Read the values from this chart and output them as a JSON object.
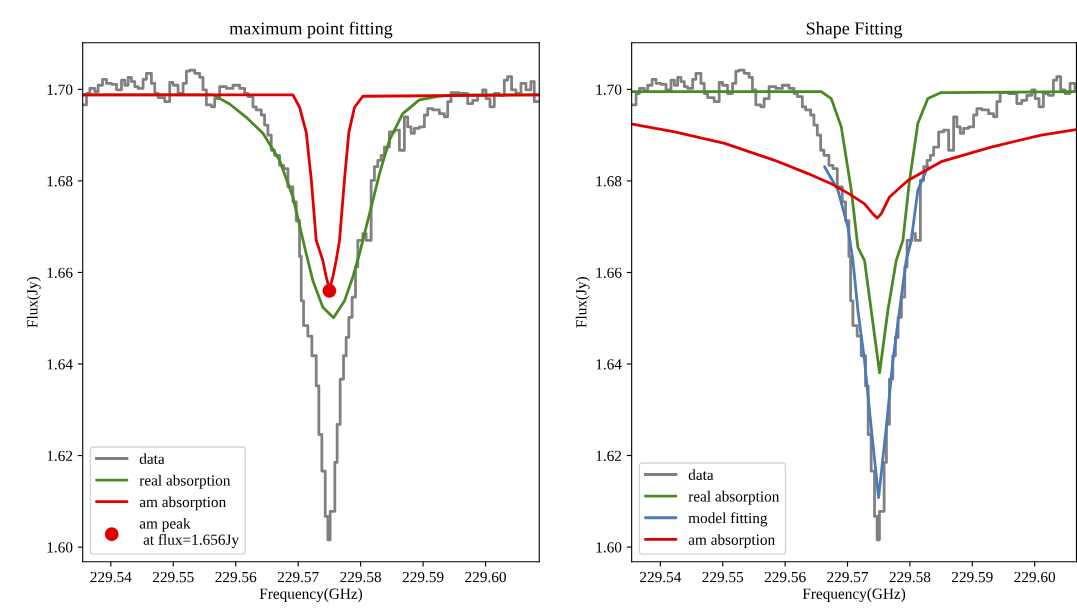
{
  "chart_data": [
    {
      "type": "line",
      "title": "maximum point fitting",
      "xlabel": "Frequency(GHz)",
      "ylabel": "Flux(Jy)",
      "xlim": [
        229.5355,
        229.6086
      ],
      "ylim": [
        1.5968,
        1.7102
      ],
      "xticks": [
        {
          "value": 229.54,
          "label": "229.54"
        },
        {
          "value": 229.55,
          "label": "229.55"
        },
        {
          "value": 229.56,
          "label": "229.56"
        },
        {
          "value": 229.57,
          "label": "229.57"
        },
        {
          "value": 229.58,
          "label": "229.58"
        },
        {
          "value": 229.59,
          "label": "229.59"
        },
        {
          "value": 229.6,
          "label": "229.60"
        }
      ],
      "yticks": [
        {
          "value": 1.6,
          "label": "1.60"
        },
        {
          "value": 1.62,
          "label": "1.62"
        },
        {
          "value": 1.64,
          "label": "1.64"
        },
        {
          "value": 1.66,
          "label": "1.66"
        },
        {
          "value": 1.68,
          "label": "1.68"
        },
        {
          "value": 1.7,
          "label": "1.70"
        }
      ],
      "grid": false,
      "legend": "bottom left",
      "series": [
        {
          "name": "data",
          "type": "step",
          "color": "#808080",
          "x": [
            229.53558,
            229.53611,
            229.53664,
            229.53744,
            229.53797,
            229.53867,
            229.53931,
            229.54011,
            229.54091,
            229.54171,
            229.54224,
            229.54277,
            229.5433,
            229.54384,
            229.54437,
            229.54517,
            229.5457,
            229.5465,
            229.54704,
            229.54757,
            229.54863,
            229.54943,
            229.54997,
            229.55077,
            229.55157,
            229.5521,
            229.55263,
            229.55343,
            229.55423,
            229.55476,
            229.5553,
            229.5561,
            229.55663,
            229.55743,
            229.5585,
            229.55956,
            229.56063,
            229.56143,
            229.56196,
            229.56276,
            229.56329,
            229.56409,
            229.56462,
            229.56516,
            229.56569,
            229.56622,
            229.56702,
            229.56766,
            229.56836,
            229.56916,
            229.56969,
            229.57022,
            229.57049,
            229.57086,
            229.57155,
            229.57219,
            229.57289,
            229.57331,
            229.57379,
            229.57433,
            229.57475,
            229.57512,
            229.57587,
            229.57624,
            229.57672,
            229.57726,
            229.57768,
            229.57811,
            229.57864,
            229.57918,
            229.57955,
            229.58035,
            229.58088,
            229.58168,
            229.58221,
            229.58275,
            229.58328,
            229.58381,
            229.58461,
            229.58541,
            229.58621,
            229.58701,
            229.58754,
            229.58808,
            229.58861,
            229.58941,
            229.59021,
            229.59074,
            229.59154,
            229.59261,
            229.59341,
            229.59394,
            229.59447,
            229.5958,
            229.59714,
            229.59794,
            229.59874,
            229.59954,
            229.60007,
            229.60071,
            229.6014,
            229.6022,
            229.603,
            229.60354,
            229.60417,
            229.60487,
            229.60567,
            229.60647,
            229.60726,
            229.6078,
            229.6086
          ],
          "values": [
            1.6966,
            1.6991,
            1.7002,
            1.6995,
            1.7009,
            1.7022,
            1.7013,
            1.7011,
            1.6999,
            1.702,
            1.7009,
            1.7026,
            1.7017,
            1.7006,
            1.7002,
            1.7022,
            1.7035,
            1.7013,
            1.6991,
            1.6982,
            1.6973,
            1.7015,
            1.7009,
            1.6991,
            1.7013,
            1.704,
            1.7042,
            1.7035,
            1.7026,
            1.6999,
            1.6966,
            1.6962,
            1.698,
            1.7006,
            1.7002,
            1.7009,
            1.7002,
            1.6991,
            1.6984,
            1.6962,
            1.6955,
            1.6944,
            1.6922,
            1.69,
            1.6867,
            1.6856,
            1.6834,
            1.6827,
            1.6787,
            1.6754,
            1.6713,
            1.6635,
            1.6538,
            1.6484,
            1.6461,
            1.6418,
            1.6352,
            1.6246,
            1.6166,
            1.6067,
            1.6016,
            1.6078,
            1.6185,
            1.6268,
            1.6367,
            1.6418,
            1.6458,
            1.6502,
            1.6546,
            1.6612,
            1.667,
            1.6685,
            1.667,
            1.6801,
            1.6831,
            1.6845,
            1.6856,
            1.6874,
            1.6907,
            1.6911,
            1.6867,
            1.694,
            1.6918,
            1.6904,
            1.6915,
            1.6918,
            1.6944,
            1.6958,
            1.6955,
            1.6947,
            1.694,
            1.6973,
            1.6993,
            1.6991,
            1.6969,
            1.6976,
            1.6987,
            1.6999,
            1.698,
            1.6962,
            1.6991,
            1.6987,
            1.702,
            1.7028,
            1.6999,
            1.6991,
            1.7013,
            1.6999,
            1.7017,
            1.6973,
            1.6973
          ]
        },
        {
          "name": "real absorption",
          "color": "#4a8a22",
          "x": [
            229.5355,
            229.55636,
            229.55903,
            229.56169,
            229.56436,
            229.56702,
            229.56916,
            229.57129,
            229.57235,
            229.57395,
            229.57566,
            229.57742,
            229.57875,
            229.57982,
            229.58142,
            229.58302,
            229.58461,
            229.58674,
            229.58941,
            229.59261,
            229.59527,
            229.6086
          ],
          "values": [
            1.6988,
            1.6988,
            1.6968,
            1.6939,
            1.6904,
            1.6845,
            1.6765,
            1.6641,
            1.6582,
            1.6524,
            1.6501,
            1.6538,
            1.659,
            1.6641,
            1.6728,
            1.6816,
            1.6889,
            1.6947,
            1.6977,
            1.6985,
            1.6988,
            1.6988
          ]
        },
        {
          "name": "am absorption",
          "color": "#e00000",
          "x": [
            229.5355,
            229.56916,
            229.57022,
            229.57129,
            229.57209,
            229.57289,
            229.57395,
            229.57449,
            229.57502,
            229.57555,
            229.57608,
            229.57662,
            229.57742,
            229.57811,
            229.57902,
            229.58035,
            229.6086
          ],
          "values": [
            1.6988,
            1.6988,
            1.6961,
            1.6906,
            1.6804,
            1.667,
            1.6626,
            1.659,
            1.6564,
            1.659,
            1.6626,
            1.667,
            1.6804,
            1.6906,
            1.6961,
            1.6985,
            1.6988
          ]
        },
        {
          "name": "am peak\n at flux=1.656Jy",
          "type": "scatter",
          "marker": "circle",
          "color": "#e00000",
          "x": [
            229.575
          ],
          "values": [
            1.656
          ]
        }
      ]
    },
    {
      "type": "line",
      "title": "Shape Fitting",
      "xlabel": "Frequency(GHz)",
      "ylabel": "Flux(Jy)",
      "xlim": [
        229.5354,
        229.6067
      ],
      "ylim": [
        1.5968,
        1.7102
      ],
      "xticks": [
        {
          "value": 229.54,
          "label": "229.54"
        },
        {
          "value": 229.55,
          "label": "229.55"
        },
        {
          "value": 229.56,
          "label": "229.56"
        },
        {
          "value": 229.57,
          "label": "229.57"
        },
        {
          "value": 229.58,
          "label": "229.58"
        },
        {
          "value": 229.59,
          "label": "229.59"
        },
        {
          "value": 229.6,
          "label": "229.60"
        }
      ],
      "yticks": [
        {
          "value": 1.6,
          "label": "1.60"
        },
        {
          "value": 1.62,
          "label": "1.62"
        },
        {
          "value": 1.64,
          "label": "1.64"
        },
        {
          "value": 1.66,
          "label": "1.66"
        },
        {
          "value": 1.68,
          "label": "1.68"
        },
        {
          "value": 1.7,
          "label": "1.70"
        }
      ],
      "grid": false,
      "legend": "bottom left",
      "series": [
        {
          "name": "data",
          "type": "step",
          "color": "#808080",
          "x": [
            229.53558,
            229.53611,
            229.53664,
            229.53744,
            229.53797,
            229.53867,
            229.53931,
            229.54011,
            229.54091,
            229.54171,
            229.54224,
            229.54277,
            229.5433,
            229.54384,
            229.54437,
            229.54517,
            229.5457,
            229.5465,
            229.54704,
            229.54757,
            229.54863,
            229.54943,
            229.54997,
            229.55077,
            229.55157,
            229.5521,
            229.55263,
            229.55343,
            229.55423,
            229.55476,
            229.5553,
            229.5561,
            229.55663,
            229.55743,
            229.5585,
            229.55956,
            229.56063,
            229.56143,
            229.56196,
            229.56276,
            229.56329,
            229.56409,
            229.56462,
            229.56516,
            229.56569,
            229.56622,
            229.56702,
            229.56766,
            229.56836,
            229.56916,
            229.56969,
            229.57022,
            229.57049,
            229.57086,
            229.57155,
            229.57219,
            229.57289,
            229.57331,
            229.57379,
            229.57433,
            229.57475,
            229.57512,
            229.57587,
            229.57624,
            229.57672,
            229.57726,
            229.57768,
            229.57811,
            229.57864,
            229.57918,
            229.57955,
            229.58035,
            229.58088,
            229.58168,
            229.58221,
            229.58275,
            229.58328,
            229.58381,
            229.58461,
            229.58541,
            229.58621,
            229.58701,
            229.58754,
            229.58808,
            229.58861,
            229.58941,
            229.59021,
            229.59074,
            229.59154,
            229.59261,
            229.59341,
            229.59394,
            229.59447,
            229.5958,
            229.59714,
            229.59794,
            229.59874,
            229.59954,
            229.60007,
            229.60071,
            229.6014,
            229.6022,
            229.603,
            229.60354,
            229.60417,
            229.60487,
            229.60567,
            229.60647,
            229.6067
          ],
          "values": [
            1.6966,
            1.6991,
            1.7002,
            1.6995,
            1.7009,
            1.7022,
            1.7013,
            1.7011,
            1.6999,
            1.702,
            1.7009,
            1.7026,
            1.7017,
            1.7006,
            1.7002,
            1.7022,
            1.7035,
            1.7013,
            1.6991,
            1.6982,
            1.6973,
            1.7015,
            1.7009,
            1.6991,
            1.7013,
            1.704,
            1.7042,
            1.7035,
            1.7026,
            1.6999,
            1.6966,
            1.6962,
            1.698,
            1.7006,
            1.7002,
            1.7009,
            1.7002,
            1.6991,
            1.6984,
            1.6962,
            1.6955,
            1.6944,
            1.6922,
            1.69,
            1.6867,
            1.6856,
            1.6834,
            1.6827,
            1.6787,
            1.6754,
            1.6713,
            1.6635,
            1.6538,
            1.6484,
            1.6461,
            1.6418,
            1.6352,
            1.6246,
            1.6166,
            1.6067,
            1.6016,
            1.6078,
            1.6185,
            1.6268,
            1.6367,
            1.6418,
            1.6458,
            1.6502,
            1.6546,
            1.6612,
            1.667,
            1.6685,
            1.667,
            1.6801,
            1.6831,
            1.6845,
            1.6856,
            1.6874,
            1.6907,
            1.6911,
            1.6867,
            1.694,
            1.6918,
            1.6904,
            1.6915,
            1.6918,
            1.6944,
            1.6958,
            1.6955,
            1.6947,
            1.694,
            1.6973,
            1.6993,
            1.6991,
            1.6969,
            1.6976,
            1.6987,
            1.6999,
            1.698,
            1.6962,
            1.6991,
            1.6987,
            1.702,
            1.7028,
            1.6999,
            1.6991,
            1.7013,
            1.6999,
            1.6999
          ]
        },
        {
          "name": "real absorption",
          "color": "#4a8a22",
          "x": [
            229.5355,
            229.56579,
            229.56739,
            229.569,
            229.5706,
            229.57167,
            229.57273,
            229.5738,
            229.57514,
            229.57647,
            229.57781,
            229.57888,
            229.57994,
            229.58128,
            229.58288,
            229.58502,
            229.6067
          ],
          "values": [
            1.6995,
            1.6995,
            1.698,
            1.6918,
            1.678,
            1.6655,
            1.6626,
            1.6517,
            1.6381,
            1.6517,
            1.6626,
            1.667,
            1.6801,
            1.6926,
            1.698,
            1.6993,
            1.6995
          ]
        },
        {
          "name": "model fitting",
          "color": "#4a7ab8",
          "x": [
            229.56633,
            229.56846,
            229.57006,
            229.57087,
            229.57167,
            229.57273,
            229.5738,
            229.57498,
            229.57621,
            229.57727,
            229.57834,
            229.57941,
            229.58021,
            229.58128,
            229.58288
          ],
          "values": [
            1.6831,
            1.678,
            1.6699,
            1.6626,
            1.6517,
            1.6407,
            1.6261,
            1.6108,
            1.6261,
            1.6407,
            1.6517,
            1.6626,
            1.667,
            1.678,
            1.6831
          ]
        },
        {
          "name": "am absorption",
          "color": "#e00000",
          "x": [
            229.5355,
            229.5423,
            229.55031,
            229.55832,
            229.56366,
            229.56739,
            229.5706,
            229.57273,
            229.57407,
            229.57476,
            229.5754,
            229.57674,
            229.57968,
            229.58502,
            229.59303,
            229.60104,
            229.60664
          ],
          "values": [
            1.6924,
            1.6907,
            1.6882,
            1.6845,
            1.6816,
            1.6794,
            1.6769,
            1.675,
            1.6728,
            1.6719,
            1.6728,
            1.6765,
            1.6801,
            1.6842,
            1.6874,
            1.69,
            1.6912
          ]
        }
      ]
    }
  ]
}
